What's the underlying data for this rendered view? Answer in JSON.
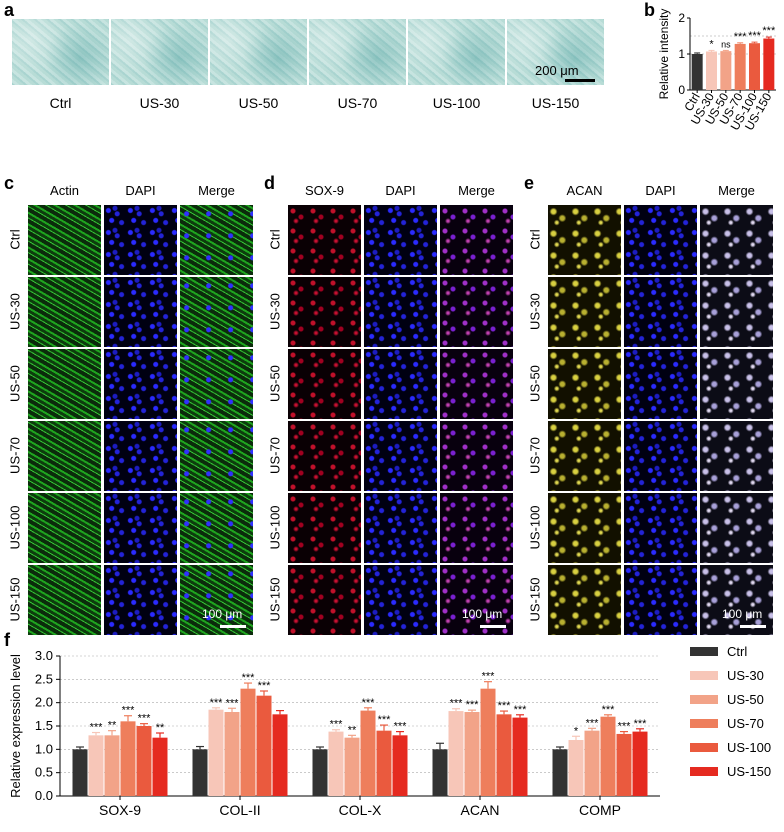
{
  "panel_a": {
    "letter": "a",
    "labels": [
      "Ctrl",
      "US-30",
      "US-50",
      "US-70",
      "US-100",
      "US-150"
    ],
    "scale": "200 μm"
  },
  "panel_c": {
    "letter": "c",
    "columns": [
      "Actin",
      "DAPI",
      "Merge"
    ],
    "rows": [
      "Ctrl",
      "US-30",
      "US-50",
      "US-70",
      "US-100",
      "US-150"
    ],
    "scale": "100 μm"
  },
  "panel_d": {
    "letter": "d",
    "columns": [
      "SOX-9",
      "DAPI",
      "Merge"
    ],
    "rows": [
      "Ctrl",
      "US-30",
      "US-50",
      "US-70",
      "US-100",
      "US-150"
    ],
    "scale": "100 μm"
  },
  "panel_e": {
    "letter": "e",
    "columns": [
      "ACAN",
      "DAPI",
      "Merge"
    ],
    "rows": [
      "Ctrl",
      "US-30",
      "US-50",
      "US-70",
      "US-100",
      "US-150"
    ],
    "scale": "100 μm"
  },
  "chart_data": [
    {
      "panel": "b",
      "type": "bar",
      "ylabel": "Relative intensity",
      "ylim": [
        0,
        2
      ],
      "yticks": [
        "0",
        "1",
        "2"
      ],
      "categories": [
        "Ctrl",
        "US-30",
        "US-50",
        "US-70",
        "US-100",
        "US-150"
      ],
      "values": [
        1.0,
        1.07,
        1.08,
        1.28,
        1.3,
        1.43
      ],
      "errors": [
        0.03,
        0.03,
        0.02,
        0.03,
        0.03,
        0.04
      ],
      "significance": [
        "",
        "*",
        "ns",
        "***",
        "***",
        "***"
      ],
      "colors": [
        "#333333",
        "#f7c6b8",
        "#f2a388",
        "#ee7e5c",
        "#ea5a3e",
        "#e52a20"
      ],
      "grid": "dashed at 1 and 1.5"
    },
    {
      "panel": "f",
      "type": "bar",
      "ylabel": "Relative expression level",
      "ylim": [
        0,
        3.0
      ],
      "yticks": [
        "0.0",
        "0.5",
        "1.0",
        "1.5",
        "2.0",
        "2.5",
        "3.0"
      ],
      "categories": [
        "SOX-9",
        "COL-II",
        "COL-X",
        "ACAN",
        "COMP"
      ],
      "legend_position": "right",
      "series": [
        {
          "name": "Ctrl",
          "color": "#333333",
          "values": [
            1.0,
            1.0,
            1.0,
            1.0,
            1.0
          ],
          "errors": [
            0.05,
            0.06,
            0.05,
            0.13,
            0.05
          ],
          "sig": [
            "",
            "",
            "",
            "",
            ""
          ]
        },
        {
          "name": "US-30",
          "color": "#f7c6b8",
          "values": [
            1.3,
            1.85,
            1.38,
            1.82,
            1.2
          ],
          "errors": [
            0.06,
            0.04,
            0.04,
            0.05,
            0.08
          ],
          "sig": [
            "***",
            "***",
            "***",
            "***",
            "*"
          ]
        },
        {
          "name": "US-50",
          "color": "#f2a388",
          "values": [
            1.3,
            1.8,
            1.25,
            1.8,
            1.4
          ],
          "errors": [
            0.1,
            0.08,
            0.05,
            0.04,
            0.05
          ],
          "sig": [
            "**",
            "***",
            "**",
            "***",
            "***"
          ]
        },
        {
          "name": "US-70",
          "color": "#ee7e5c",
          "values": [
            1.6,
            2.3,
            1.83,
            2.3,
            1.7
          ],
          "errors": [
            0.12,
            0.12,
            0.06,
            0.15,
            0.04
          ],
          "sig": [
            "***",
            "***",
            "***",
            "***",
            "***"
          ]
        },
        {
          "name": "US-100",
          "color": "#ea5a3e",
          "values": [
            1.5,
            2.15,
            1.4,
            1.75,
            1.33
          ],
          "errors": [
            0.05,
            0.1,
            0.12,
            0.07,
            0.05
          ],
          "sig": [
            "***",
            "***",
            "***",
            "***",
            "***"
          ]
        },
        {
          "name": "US-150",
          "color": "#e52a20",
          "values": [
            1.25,
            1.75,
            1.3,
            1.68,
            1.38
          ],
          "errors": [
            0.1,
            0.08,
            0.08,
            0.06,
            0.06
          ],
          "sig": [
            "**",
            "",
            "***",
            "***",
            "***"
          ]
        }
      ],
      "grid": "dashed horizontal lines at 1.0 and 1.5"
    }
  ]
}
